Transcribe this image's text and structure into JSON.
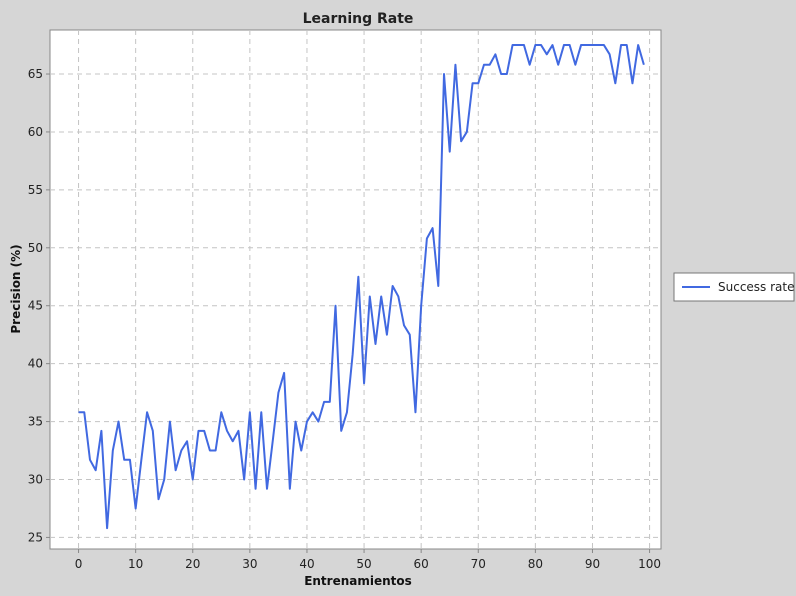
{
  "chart_data": {
    "type": "line",
    "title": "Learning Rate",
    "xlabel": "Entrenamientos",
    "ylabel": "Precision (%)",
    "xlim": [
      -5,
      102
    ],
    "ylim": [
      24,
      68.8
    ],
    "x_ticks": [
      0,
      10,
      20,
      30,
      40,
      50,
      60,
      70,
      80,
      90,
      100
    ],
    "y_ticks": [
      25,
      30,
      35,
      40,
      45,
      50,
      55,
      60,
      65
    ],
    "grid": true,
    "legend": {
      "placement": "right"
    },
    "series": [
      {
        "name": "Success rate",
        "color": "#4169e1",
        "x": [
          0,
          1,
          2,
          3,
          4,
          5,
          6,
          7,
          8,
          9,
          10,
          11,
          12,
          13,
          14,
          15,
          16,
          17,
          18,
          19,
          20,
          21,
          22,
          23,
          24,
          25,
          26,
          27,
          28,
          29,
          30,
          31,
          32,
          33,
          34,
          35,
          36,
          37,
          38,
          39,
          40,
          41,
          42,
          43,
          44,
          45,
          46,
          47,
          48,
          49,
          50,
          51,
          52,
          53,
          54,
          55,
          56,
          57,
          58,
          59,
          60,
          61,
          62,
          63,
          64,
          65,
          66,
          67,
          68,
          69,
          70,
          71,
          72,
          73,
          74,
          75,
          76,
          77,
          78,
          79,
          80,
          81,
          82,
          83,
          84,
          85,
          86,
          87,
          88,
          89,
          90,
          91,
          92,
          93,
          94,
          95,
          96,
          97,
          98,
          99
        ],
        "values": [
          35.8,
          35.8,
          31.7,
          30.8,
          34.2,
          25.8,
          32.5,
          35.0,
          31.7,
          31.7,
          27.5,
          31.7,
          35.8,
          34.2,
          28.3,
          30.0,
          35.0,
          30.8,
          32.5,
          33.3,
          30.0,
          34.2,
          34.2,
          32.5,
          32.5,
          35.8,
          34.2,
          33.3,
          34.2,
          30.0,
          35.8,
          29.2,
          35.8,
          29.2,
          33.3,
          37.5,
          39.2,
          29.2,
          35.0,
          32.5,
          35.0,
          35.8,
          35.0,
          36.7,
          36.7,
          45.0,
          34.2,
          35.8,
          40.8,
          47.5,
          38.3,
          45.8,
          41.7,
          45.8,
          42.5,
          46.7,
          45.8,
          43.3,
          42.5,
          35.8,
          45.0,
          50.8,
          51.7,
          46.7,
          65.0,
          58.3,
          65.8,
          59.2,
          60.0,
          64.2,
          64.2,
          65.8,
          65.8,
          66.7,
          65.0,
          65.0,
          67.5,
          67.5,
          67.5,
          65.8,
          67.5,
          67.5,
          66.7,
          67.5,
          65.8,
          67.5,
          67.5,
          65.8,
          67.5,
          67.5,
          67.5,
          67.5,
          67.5,
          66.7,
          64.2,
          67.5,
          67.5,
          64.2,
          67.5,
          65.8
        ]
      }
    ]
  }
}
